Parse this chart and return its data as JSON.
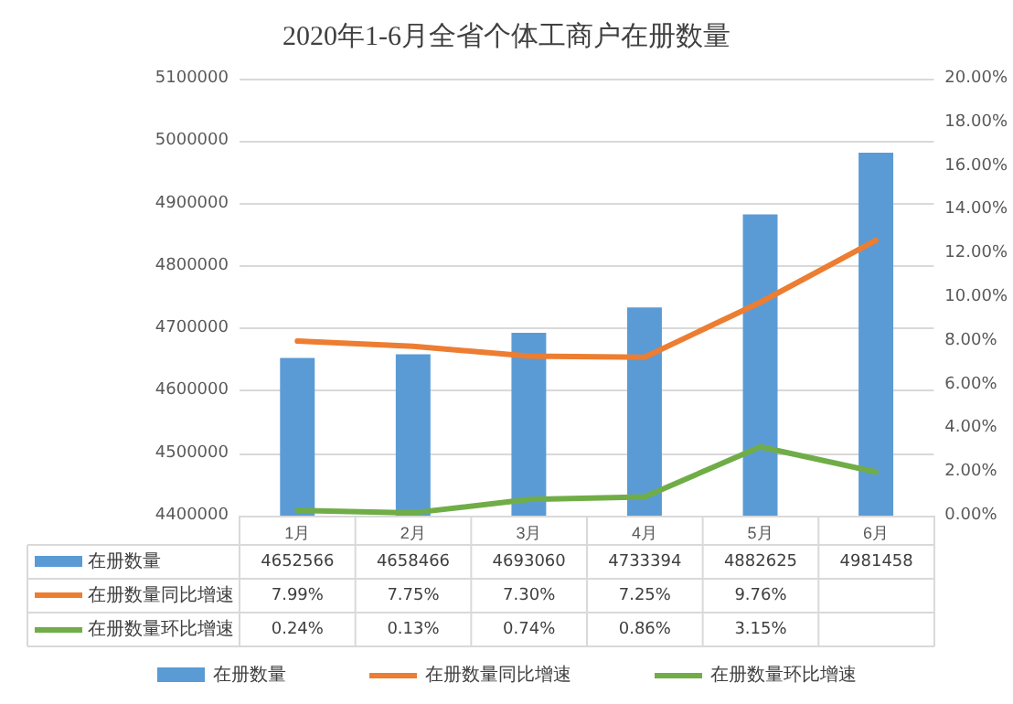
{
  "chart_data": {
    "type": "bar",
    "title": "2020年1-6月全省个体工商户在册数量",
    "categories": [
      "1月",
      "2月",
      "3月",
      "4月",
      "5月",
      "6月"
    ],
    "series": [
      {
        "name": "在册数量",
        "color": "#5b9bd5",
        "values": [
          4652566,
          4658466,
          4693060,
          4733394,
          4882625,
          4981458
        ],
        "value_labels": [
          "4652566",
          "4658466",
          "4693060",
          "4733394",
          "4882625",
          "4981458"
        ]
      },
      {
        "name": "在册数量同比增速",
        "type": "line",
        "axis": "y2",
        "color": "#ed7d31",
        "values": [
          7.99,
          7.75,
          7.3,
          7.25,
          9.76,
          12.6
        ],
        "value_labels": [
          "7.99%",
          "7.75%",
          "7.30%",
          "7.25%",
          "9.76%",
          null
        ]
      },
      {
        "name": "在册数量环比增速",
        "type": "line",
        "axis": "y2",
        "color": "#70ad47",
        "values": [
          0.24,
          0.13,
          0.74,
          0.86,
          3.15,
          2.0
        ],
        "value_labels": [
          "0.24%",
          "0.13%",
          "0.74%",
          "0.86%",
          "3.15%",
          null
        ]
      }
    ],
    "ylim": [
      4400000,
      5100000
    ],
    "yticks": [
      4400000,
      4500000,
      4600000,
      4700000,
      4800000,
      4900000,
      5000000,
      5100000
    ],
    "y2lim": [
      0,
      20
    ],
    "y2ticks": [
      {
        "value": 0,
        "label": "0.00%"
      },
      {
        "value": 2,
        "label": "2.00%"
      },
      {
        "value": 4,
        "label": "4.00%"
      },
      {
        "value": 6,
        "label": "6.00%"
      },
      {
        "value": 8,
        "label": "8.00%"
      },
      {
        "value": 10,
        "label": "10.00%"
      },
      {
        "value": 12,
        "label": "12.00%"
      },
      {
        "value": 14,
        "label": "14.00%"
      },
      {
        "value": 16,
        "label": "16.00%"
      },
      {
        "value": 18,
        "label": "18.00%"
      },
      {
        "value": 20,
        "label": "20.00%"
      }
    ],
    "grid": "y",
    "legend": "bottom",
    "marker": "none",
    "line_style": "solid"
  }
}
